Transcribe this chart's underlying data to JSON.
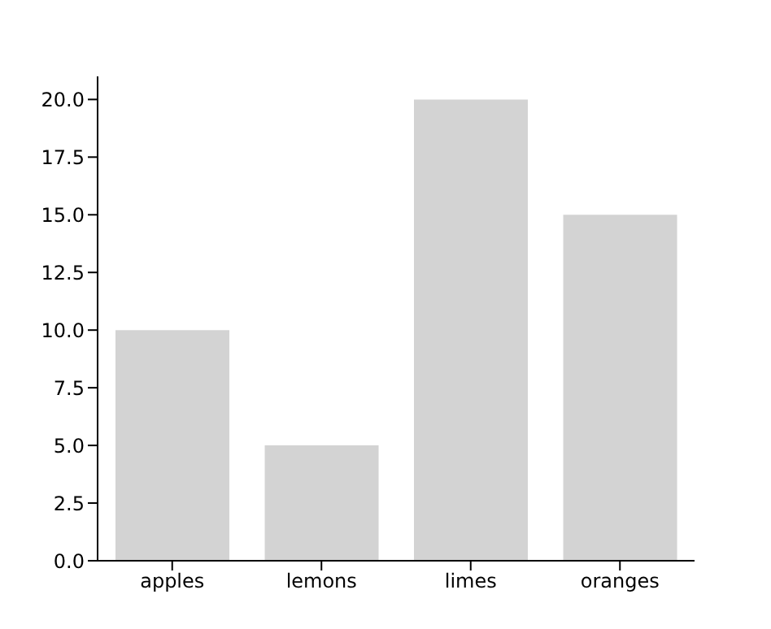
{
  "chart_data": {
    "type": "bar",
    "categories": [
      "apples",
      "lemons",
      "limes",
      "oranges"
    ],
    "values": [
      10,
      5,
      20,
      15
    ],
    "color": "#d3d3d3",
    "ylim": [
      0,
      21
    ],
    "yticks": [
      {
        "value": 0,
        "label": "0.0"
      },
      {
        "value": 2.5,
        "label": "2.5"
      },
      {
        "value": 5,
        "label": "5.0"
      },
      {
        "value": 7.5,
        "label": "7.5"
      },
      {
        "value": 10,
        "label": "10.0"
      },
      {
        "value": 12.5,
        "label": "12.5"
      },
      {
        "value": 15,
        "label": "15.0"
      },
      {
        "value": 17.5,
        "label": "17.5"
      },
      {
        "value": 20,
        "label": "20.0"
      }
    ],
    "grid": false
  }
}
